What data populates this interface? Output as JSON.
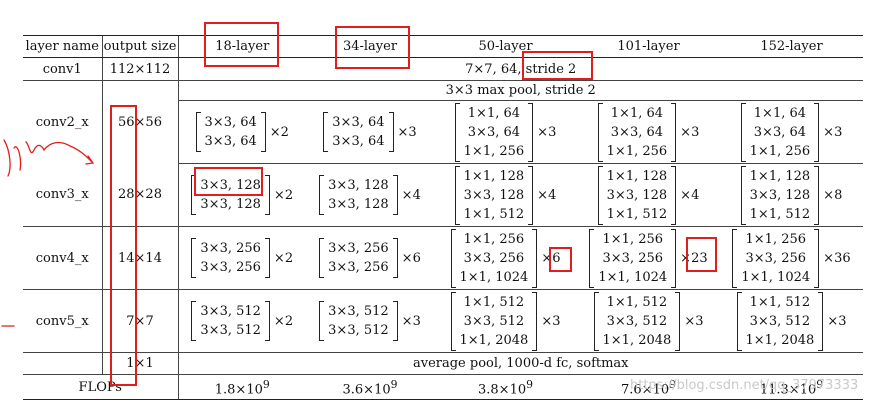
{
  "header": {
    "layer_name": "layer name",
    "output_size": "output size",
    "models": [
      "18-layer",
      "34-layer",
      "50-layer",
      "101-layer",
      "152-layer"
    ]
  },
  "conv1": {
    "name": "conv1",
    "output": "112×112",
    "spec": "7×7, 64, stride 2"
  },
  "pool": {
    "spec": "3×3 max pool, stride 2"
  },
  "stages": [
    {
      "name": "conv2_x",
      "output": "56×56",
      "blocks": [
        {
          "lines": [
            "3×3, 64",
            "3×3, 64"
          ],
          "mult": "×2"
        },
        {
          "lines": [
            "3×3, 64",
            "3×3, 64"
          ],
          "mult": "×3"
        },
        {
          "lines": [
            "1×1, 64",
            "3×3, 64",
            "1×1, 256"
          ],
          "mult": "×3"
        },
        {
          "lines": [
            "1×1, 64",
            "3×3, 64",
            "1×1, 256"
          ],
          "mult": "×3"
        },
        {
          "lines": [
            "1×1, 64",
            "3×3, 64",
            "1×1, 256"
          ],
          "mult": "×3"
        }
      ]
    },
    {
      "name": "conv3_x",
      "output": "28×28",
      "blocks": [
        {
          "lines": [
            "3×3, 128",
            "3×3, 128"
          ],
          "mult": "×2"
        },
        {
          "lines": [
            "3×3, 128",
            "3×3, 128"
          ],
          "mult": "×4"
        },
        {
          "lines": [
            "1×1, 128",
            "3×3, 128",
            "1×1, 512"
          ],
          "mult": "×4"
        },
        {
          "lines": [
            "1×1, 128",
            "3×3, 128",
            "1×1, 512"
          ],
          "mult": "×4"
        },
        {
          "lines": [
            "1×1, 128",
            "3×3, 128",
            "1×1, 512"
          ],
          "mult": "×8"
        }
      ]
    },
    {
      "name": "conv4_x",
      "output": "14×14",
      "blocks": [
        {
          "lines": [
            "3×3, 256",
            "3×3, 256"
          ],
          "mult": "×2"
        },
        {
          "lines": [
            "3×3, 256",
            "3×3, 256"
          ],
          "mult": "×6"
        },
        {
          "lines": [
            "1×1, 256",
            "3×3, 256",
            "1×1, 1024"
          ],
          "mult": "×6"
        },
        {
          "lines": [
            "1×1, 256",
            "3×3, 256",
            "1×1, 1024"
          ],
          "mult": "×23"
        },
        {
          "lines": [
            "1×1, 256",
            "3×3, 256",
            "1×1, 1024"
          ],
          "mult": "×36"
        }
      ]
    },
    {
      "name": "conv5_x",
      "output": "7×7",
      "blocks": [
        {
          "lines": [
            "3×3, 512",
            "3×3, 512"
          ],
          "mult": "×2"
        },
        {
          "lines": [
            "3×3, 512",
            "3×3, 512"
          ],
          "mult": "×3"
        },
        {
          "lines": [
            "1×1, 512",
            "3×3, 512",
            "1×1, 2048"
          ],
          "mult": "×3"
        },
        {
          "lines": [
            "1×1, 512",
            "3×3, 512",
            "1×1, 2048"
          ],
          "mult": "×3"
        },
        {
          "lines": [
            "1×1, 512",
            "3×3, 512",
            "1×1, 2048"
          ],
          "mult": "×3"
        }
      ]
    }
  ],
  "avgpool": {
    "output": "1×1",
    "spec": "average pool, 1000-d fc, softmax"
  },
  "flops": {
    "label": "FLOPs",
    "values": [
      {
        "mantissa": "1.8×10",
        "exp": "9"
      },
      {
        "mantissa": "3.6×10",
        "exp": "9"
      },
      {
        "mantissa": "3.8×10",
        "exp": "9"
      },
      {
        "mantissa": "7.6×10",
        "exp": "9"
      },
      {
        "mantissa": "11.3×10",
        "exp": "9"
      }
    ]
  },
  "watermark": "https://blog.csdn.net/qq_37973333",
  "annotation_color": "#e11d1d"
}
